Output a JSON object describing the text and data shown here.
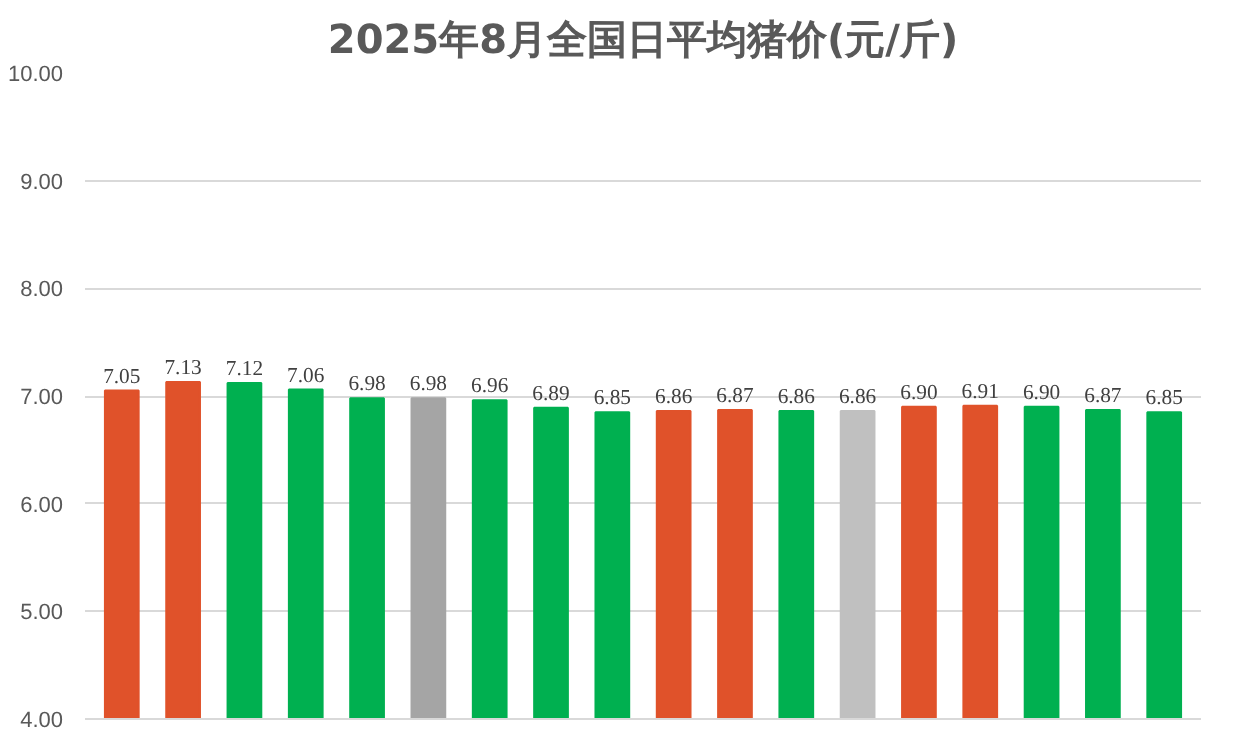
{
  "chart_data": {
    "type": "bar",
    "title": "2025年8月全国日平均猪价(元/斤)",
    "categories": [
      null,
      null,
      null,
      null,
      null,
      null,
      null,
      null,
      null,
      null,
      null,
      null,
      null,
      null,
      null,
      null,
      null,
      null
    ],
    "values": [
      7.05,
      7.13,
      7.12,
      7.06,
      6.98,
      6.98,
      6.96,
      6.89,
      6.85,
      6.86,
      6.87,
      6.86,
      6.86,
      6.9,
      6.91,
      6.9,
      6.87,
      6.85
    ],
    "value_labels": [
      "7.05",
      "7.13",
      "7.12",
      "7.06",
      "6.98",
      "6.98",
      "6.96",
      "6.89",
      "6.85",
      "6.86",
      "6.87",
      "6.86",
      "6.86",
      "6.90",
      "6.91",
      "6.90",
      "6.87",
      "6.85"
    ],
    "colors": [
      "#e0522a",
      "#e0522a",
      "#00b050",
      "#00b050",
      "#00b050",
      "#a5a5a5",
      "#00b050",
      "#00b050",
      "#00b050",
      "#e0522a",
      "#e0522a",
      "#00b050",
      "#c0c0c0",
      "#e0522a",
      "#e0522a",
      "#00b050",
      "#00b050",
      "#00b050"
    ],
    "ylim": [
      4,
      10
    ],
    "yticks": [
      {
        "value": 4,
        "label": "4.00"
      },
      {
        "value": 5,
        "label": "5.00"
      },
      {
        "value": 6,
        "label": "6.00"
      },
      {
        "value": 7,
        "label": "7.00"
      },
      {
        "value": 8,
        "label": "8.00"
      },
      {
        "value": 9,
        "label": "9.00"
      },
      {
        "value": 10,
        "label": "10.00"
      }
    ],
    "grid": "y"
  }
}
